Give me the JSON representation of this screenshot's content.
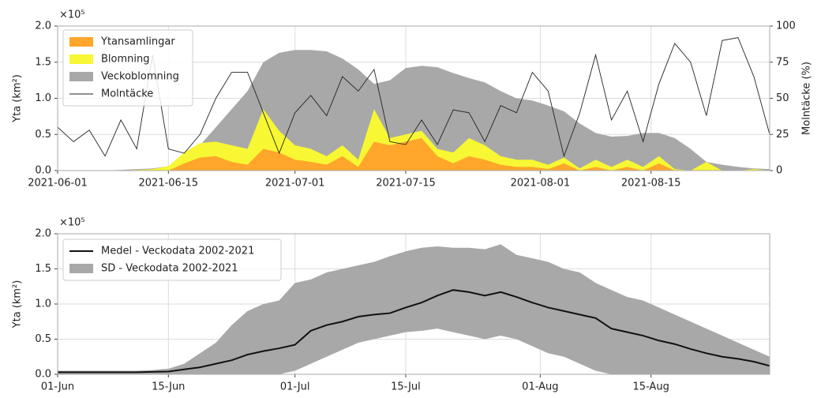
{
  "chart_data": [
    {
      "type": "area",
      "ylabel": "Yta (km²)",
      "y2label": "Molntäcke (%)",
      "offset_label": "×10⁵",
      "x": [
        "2021-06-01",
        "2021-06-03",
        "2021-06-05",
        "2021-06-07",
        "2021-06-09",
        "2021-06-11",
        "2021-06-13",
        "2021-06-15",
        "2021-06-17",
        "2021-06-19",
        "2021-06-21",
        "2021-06-23",
        "2021-06-25",
        "2021-06-27",
        "2021-06-29",
        "2021-07-01",
        "2021-07-03",
        "2021-07-05",
        "2021-07-07",
        "2021-07-09",
        "2021-07-11",
        "2021-07-13",
        "2021-07-15",
        "2021-07-17",
        "2021-07-19",
        "2021-07-21",
        "2021-07-23",
        "2021-07-25",
        "2021-07-27",
        "2021-07-29",
        "2021-07-31",
        "2021-08-02",
        "2021-08-04",
        "2021-08-06",
        "2021-08-08",
        "2021-08-10",
        "2021-08-12",
        "2021-08-14",
        "2021-08-16",
        "2021-08-18",
        "2021-08-20",
        "2021-08-22",
        "2021-08-24",
        "2021-08-26",
        "2021-08-28",
        "2021-08-30"
      ],
      "xlim": [
        "2021-06-01",
        "2021-08-30"
      ],
      "xticks": [
        "2021-06-01",
        "2021-06-15",
        "2021-07-01",
        "2021-07-15",
        "2021-08-01",
        "2021-08-15"
      ],
      "ylim": [
        0,
        2
      ],
      "yticks": [
        {
          "value": 0,
          "label": "0.0"
        },
        0.5,
        {
          "value": 1,
          "label": "1.0"
        },
        1.5,
        {
          "value": 2,
          "label": "2.0"
        }
      ],
      "y2lim": [
        0,
        100
      ],
      "y2ticks": [
        0,
        25,
        50,
        75,
        100
      ],
      "grid": true,
      "legend": "upper left",
      "series": [
        {
          "name": "Ytansamlingar",
          "kind": "area",
          "color": "#ffa62b",
          "values": [
            0,
            0,
            0,
            0,
            0,
            0,
            0,
            0,
            0.1,
            0.18,
            0.2,
            0.12,
            0.08,
            0.3,
            0.25,
            0.15,
            0.12,
            0.08,
            0.2,
            0.05,
            0.4,
            0.35,
            0.4,
            0.45,
            0.2,
            0.1,
            0.2,
            0.15,
            0.08,
            0.05,
            0.05,
            0.02,
            0.1,
            0,
            0.05,
            0,
            0.05,
            0,
            0.1,
            0,
            0,
            0,
            0,
            0,
            0,
            0
          ]
        },
        {
          "name": "Blomning",
          "kind": "area",
          "color": "#f7f733",
          "values": [
            0,
            0,
            0,
            0,
            0,
            0.01,
            0.02,
            0.06,
            0.25,
            0.38,
            0.4,
            0.35,
            0.3,
            0.85,
            0.55,
            0.35,
            0.3,
            0.2,
            0.35,
            0.15,
            0.85,
            0.45,
            0.5,
            0.55,
            0.3,
            0.25,
            0.45,
            0.35,
            0.2,
            0.15,
            0.15,
            0.08,
            0.18,
            0.03,
            0.15,
            0.05,
            0.15,
            0.05,
            0.2,
            0.02,
            0,
            0.12,
            0,
            0,
            0.02,
            0
          ]
        },
        {
          "name": "Veckoblomning",
          "kind": "area",
          "color": "#a8a8a8",
          "values": [
            0,
            0,
            0,
            0,
            0.01,
            0.02,
            0.03,
            0.06,
            0.15,
            0.35,
            0.6,
            0.85,
            1.1,
            1.5,
            1.63,
            1.67,
            1.67,
            1.65,
            1.55,
            1.4,
            1.2,
            1.25,
            1.42,
            1.45,
            1.43,
            1.35,
            1.28,
            1.22,
            1.1,
            1.0,
            0.97,
            0.9,
            0.82,
            0.65,
            0.52,
            0.47,
            0.48,
            0.52,
            0.52,
            0.45,
            0.3,
            0.12,
            0.08,
            0.05,
            0.03,
            0.02
          ]
        },
        {
          "name": "Molntäcke",
          "kind": "line",
          "axis": "y2",
          "color": "#222222",
          "values": [
            30,
            20,
            28,
            10,
            35,
            15,
            80,
            15,
            12,
            25,
            50,
            68,
            68,
            40,
            12,
            40,
            52,
            38,
            65,
            55,
            70,
            20,
            18,
            35,
            18,
            42,
            40,
            20,
            45,
            40,
            68,
            55,
            10,
            40,
            80,
            35,
            55,
            20,
            60,
            88,
            75,
            38,
            90,
            92,
            65,
            25
          ]
        }
      ]
    },
    {
      "type": "area",
      "ylabel": "Yta (km²)",
      "offset_label": "×10⁵",
      "x": [
        "01-Jun",
        "03-Jun",
        "05-Jun",
        "07-Jun",
        "09-Jun",
        "11-Jun",
        "13-Jun",
        "15-Jun",
        "17-Jun",
        "19-Jun",
        "21-Jun",
        "23-Jun",
        "25-Jun",
        "27-Jun",
        "29-Jun",
        "01-Jul",
        "03-Jul",
        "05-Jul",
        "07-Jul",
        "09-Jul",
        "11-Jul",
        "13-Jul",
        "15-Jul",
        "17-Jul",
        "19-Jul",
        "21-Jul",
        "23-Jul",
        "25-Jul",
        "27-Jul",
        "29-Jul",
        "31-Jul",
        "02-Aug",
        "04-Aug",
        "06-Aug",
        "08-Aug",
        "10-Aug",
        "12-Aug",
        "14-Aug",
        "16-Aug",
        "18-Aug",
        "20-Aug",
        "22-Aug",
        "24-Aug",
        "26-Aug",
        "28-Aug",
        "30-Aug"
      ],
      "xlim": [
        "01-Jun",
        "30-Aug"
      ],
      "xticks": [
        "01-Jun",
        "15-Jun",
        "01-Jul",
        "15-Jul",
        "01-Aug",
        "15-Aug"
      ],
      "ylim": [
        0,
        2
      ],
      "yticks": [
        {
          "value": 0,
          "label": "0.0"
        },
        0.5,
        {
          "value": 1,
          "label": "1.0"
        },
        1.5,
        {
          "value": 2,
          "label": "2.0"
        }
      ],
      "grid": true,
      "legend": "upper left",
      "series": [
        {
          "name": "Medel - Veckodata 2002-2021",
          "kind": "line",
          "color": "#111111",
          "values": [
            0.03,
            0.03,
            0.03,
            0.03,
            0.03,
            0.03,
            0.035,
            0.04,
            0.07,
            0.1,
            0.15,
            0.2,
            0.28,
            0.33,
            0.37,
            0.42,
            0.62,
            0.7,
            0.75,
            0.82,
            0.85,
            0.87,
            0.95,
            1.02,
            1.12,
            1.2,
            1.17,
            1.12,
            1.17,
            1.1,
            1.02,
            0.95,
            0.9,
            0.85,
            0.8,
            0.65,
            0.6,
            0.55,
            0.48,
            0.43,
            0.36,
            0.3,
            0.25,
            0.22,
            0.18,
            0.12
          ]
        },
        {
          "name": "SD - Veckodata 2002-2021",
          "kind": "band",
          "color": "#a8a8a8",
          "lower": [
            0,
            0,
            0,
            0,
            0,
            0,
            0,
            0,
            0,
            0,
            0,
            0,
            0,
            0,
            0,
            0.05,
            0.15,
            0.25,
            0.35,
            0.45,
            0.5,
            0.55,
            0.6,
            0.62,
            0.65,
            0.6,
            0.55,
            0.5,
            0.55,
            0.5,
            0.4,
            0.3,
            0.25,
            0.15,
            0.05,
            0,
            0,
            0,
            0,
            0,
            0,
            0,
            0,
            0,
            0,
            0
          ],
          "upper": [
            0.05,
            0.05,
            0.05,
            0.05,
            0.05,
            0.05,
            0.06,
            0.08,
            0.15,
            0.3,
            0.45,
            0.7,
            0.9,
            1.0,
            1.05,
            1.3,
            1.35,
            1.45,
            1.5,
            1.55,
            1.6,
            1.68,
            1.75,
            1.8,
            1.82,
            1.8,
            1.8,
            1.78,
            1.85,
            1.7,
            1.65,
            1.6,
            1.5,
            1.45,
            1.3,
            1.2,
            1.1,
            1.05,
            0.95,
            0.85,
            0.75,
            0.65,
            0.55,
            0.45,
            0.35,
            0.25
          ]
        }
      ]
    }
  ]
}
